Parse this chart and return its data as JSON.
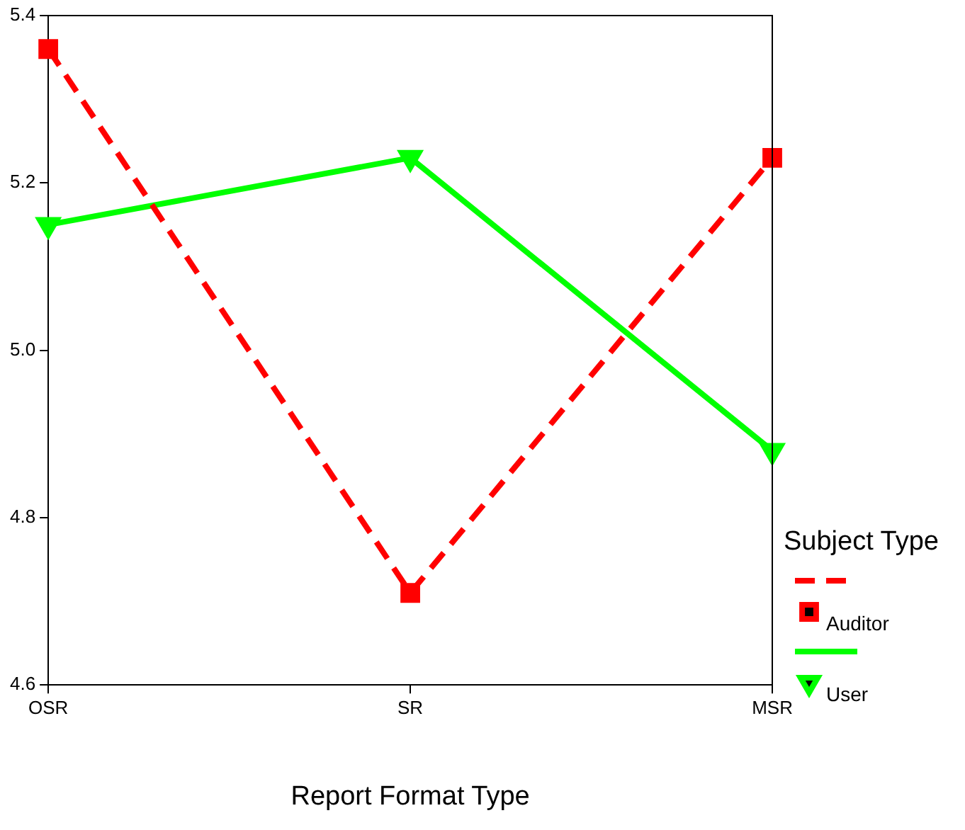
{
  "chart_data": {
    "type": "line",
    "xlabel": "Report Format Type",
    "legend_title": "Subject Type",
    "categories": [
      "OSR",
      "SR",
      "MSR"
    ],
    "series": [
      {
        "name": "Auditor",
        "color": "#ff0000",
        "values": [
          5.36,
          4.71,
          5.23
        ],
        "marker": "square",
        "line_style": "dashed"
      },
      {
        "name": "User",
        "color": "#00ff00",
        "values": [
          5.15,
          5.23,
          4.88
        ],
        "marker": "triangle",
        "line_style": "solid"
      }
    ],
    "ylim": [
      4.6,
      5.4
    ],
    "yticks": [
      4.6,
      4.8,
      {
        "value": 5.0,
        "label": "5.0"
      },
      5.2,
      5.4
    ],
    "grid": false,
    "legend": "right"
  }
}
